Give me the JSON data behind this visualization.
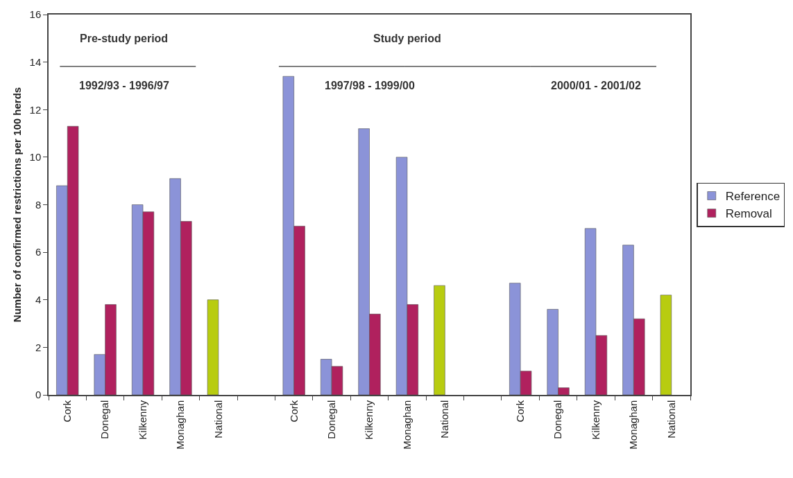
{
  "chart_data": {
    "type": "bar",
    "ylabel": "Number of confirmed restrictions per 100 herds",
    "categories": [
      "Cork",
      "Donegal",
      "Kilkenny",
      "Monaghan",
      "National",
      null,
      "Cork",
      "Donegal",
      "Kilkenny",
      "Monaghan",
      "National",
      null,
      "Cork",
      "Donegal",
      "Kilkenny",
      "Monaghan",
      "National"
    ],
    "series": [
      {
        "name": "Reference",
        "color": "#8b93d8",
        "colors": [
          "#8b93d8",
          "#8b93d8",
          "#8b93d8",
          "#8b93d8",
          "#b8cc10",
          "#8b93d8",
          "#8b93d8",
          "#8b93d8",
          "#8b93d8",
          "#8b93d8",
          "#b8cc10",
          "#8b93d8",
          "#8b93d8",
          "#8b93d8",
          "#8b93d8",
          "#8b93d8",
          "#b8cc10"
        ],
        "values": [
          8.8,
          1.7,
          8.0,
          9.1,
          4.0,
          null,
          13.4,
          1.5,
          11.2,
          10.0,
          4.6,
          null,
          4.7,
          3.6,
          7.0,
          6.3,
          4.2
        ]
      },
      {
        "name": "Removal",
        "color": "#b0215e",
        "values": [
          11.3,
          3.8,
          7.7,
          7.3,
          null,
          null,
          7.1,
          1.2,
          3.4,
          3.8,
          null,
          null,
          1.0,
          0.3,
          2.5,
          3.2,
          null
        ]
      }
    ],
    "ylim": [
      0,
      16
    ],
    "yticks": [
      0,
      2,
      4,
      6,
      8,
      10,
      12,
      14,
      16
    ],
    "legend": "right",
    "annotations": [
      "Pre-study period",
      "1992/93 - 1996/97",
      "Study period",
      "1997/98 - 1999/00",
      "2000/01 - 2001/02"
    ]
  }
}
